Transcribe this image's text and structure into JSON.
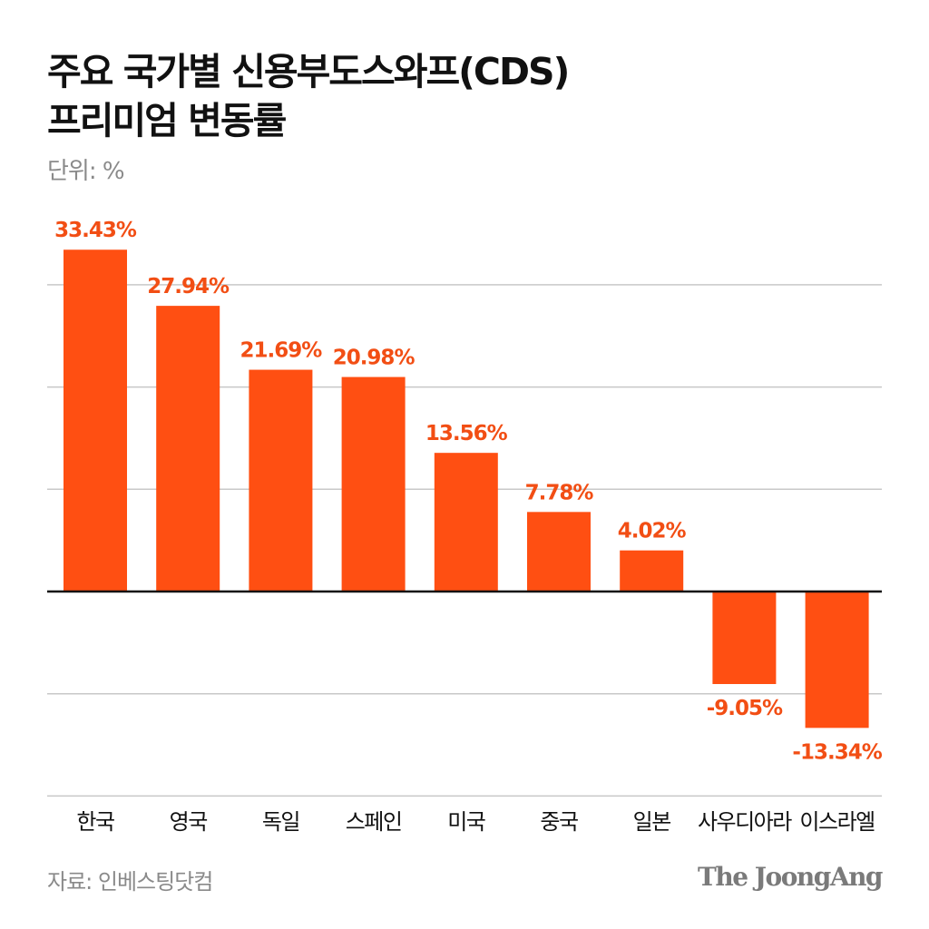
{
  "title_line1": "주요 국가별 신용부도스와프(CDS)",
  "title_line2": "프리미엄 변동률",
  "unit": "단위: %",
  "source": "자료: 인베스팅닷컴",
  "logo": "The JoongAng",
  "colors": {
    "bar": "#ff4f12",
    "label": "#f24e14",
    "grid": "#c8c8c8",
    "zero": "#111111"
  },
  "chart_data": {
    "type": "bar",
    "title": "주요 국가별 신용부도스와프(CDS) 프리미엄 변동률",
    "ylabel": "단위: %",
    "categories": [
      "한국",
      "영국",
      "독일",
      "스페인",
      "미국",
      "중국",
      "일본",
      "사우디아라",
      "이스라엘"
    ],
    "values": [
      33.43,
      27.94,
      21.69,
      20.98,
      13.56,
      7.78,
      4.02,
      -9.05,
      -13.34
    ],
    "data_labels": [
      "33.43%",
      "27.94%",
      "21.69%",
      "20.98%",
      "13.56%",
      "7.78%",
      "4.02%",
      "-9.05%",
      "-13.34%"
    ],
    "ylim": [
      -20,
      33.43
    ],
    "gridlines": [
      -20,
      -10,
      10,
      20,
      30
    ],
    "grid": true
  }
}
